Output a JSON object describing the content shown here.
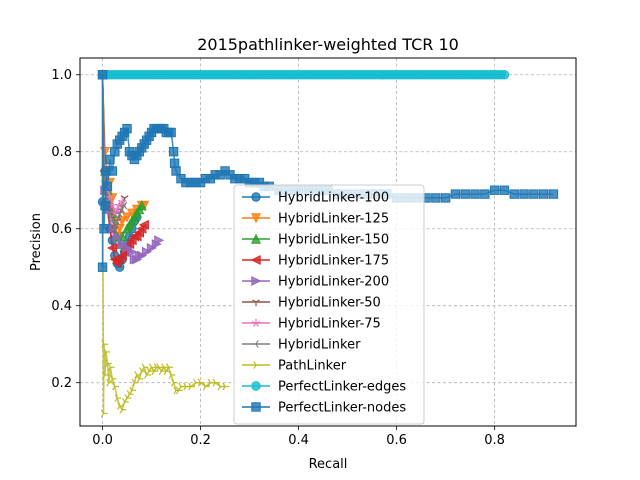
{
  "chart_data": {
    "type": "line",
    "title": "2015pathlinker-weighted TCR 10",
    "xlabel": "Recall",
    "ylabel": "Precision",
    "xlim": [
      -0.046,
      0.966
    ],
    "ylim": [
      0.0875,
      1.0435
    ],
    "xticks": [
      "0.0",
      "0.2",
      "0.4",
      "0.6",
      "0.8"
    ],
    "xtick_values": [
      0.0,
      0.2,
      0.4,
      0.6,
      0.8
    ],
    "yticks": [
      "0.2",
      "0.4",
      "0.6",
      "0.8",
      "1.0"
    ],
    "ytick_values": [
      0.2,
      0.4,
      0.6,
      0.8,
      1.0
    ],
    "grid": true,
    "legend_position": "lower-center-right",
    "series": [
      {
        "name": "HybridLinker-100",
        "color": "#1f77b4",
        "marker": "circle",
        "x": [
          0.0,
          0.0,
          0.005,
          0.01,
          0.015,
          0.02,
          0.025,
          0.03,
          0.035,
          0.04,
          0.045,
          0.05,
          0.055,
          0.06,
          0.065,
          0.07
        ],
        "y": [
          1.0,
          0.67,
          0.75,
          0.67,
          0.6,
          0.57,
          0.53,
          0.51,
          0.5,
          0.52,
          0.54,
          0.56,
          0.58,
          0.6,
          0.62,
          0.63
        ]
      },
      {
        "name": "HybridLinker-125",
        "color": "#ff7f0e",
        "marker": "triangle-down",
        "x": [
          0.0,
          0.005,
          0.01,
          0.015,
          0.02,
          0.025,
          0.03,
          0.035,
          0.04,
          0.05,
          0.06,
          0.07,
          0.08,
          0.085
        ],
        "y": [
          1.0,
          0.8,
          0.75,
          0.72,
          0.68,
          0.62,
          0.58,
          0.6,
          0.62,
          0.63,
          0.64,
          0.65,
          0.66,
          0.66
        ]
      },
      {
        "name": "HybridLinker-150",
        "color": "#2ca02c",
        "marker": "triangle-up",
        "x": [
          0.0,
          0.005,
          0.01,
          0.015,
          0.02,
          0.03,
          0.035,
          0.04,
          0.05,
          0.055,
          0.06,
          0.065,
          0.07,
          0.075,
          0.08
        ],
        "y": [
          1.0,
          0.75,
          0.7,
          0.66,
          0.64,
          0.58,
          0.56,
          0.58,
          0.6,
          0.61,
          0.62,
          0.63,
          0.64,
          0.65,
          0.66
        ]
      },
      {
        "name": "HybridLinker-175",
        "color": "#d62728",
        "marker": "triangle-left",
        "x": [
          0.0,
          0.005,
          0.01,
          0.015,
          0.02,
          0.025,
          0.03,
          0.035,
          0.04,
          0.045,
          0.05,
          0.055,
          0.06,
          0.065,
          0.07,
          0.075,
          0.08,
          0.085
        ],
        "y": [
          1.0,
          0.75,
          0.65,
          0.6,
          0.55,
          0.52,
          0.51,
          0.52,
          0.53,
          0.54,
          0.55,
          0.56,
          0.57,
          0.58,
          0.58,
          0.59,
          0.6,
          0.61
        ]
      },
      {
        "name": "HybridLinker-200",
        "color": "#9467bd",
        "marker": "triangle-right",
        "x": [
          0.0,
          0.005,
          0.01,
          0.02,
          0.03,
          0.04,
          0.05,
          0.06,
          0.065,
          0.07,
          0.075,
          0.08,
          0.09,
          0.1,
          0.11,
          0.115
        ],
        "y": [
          1.0,
          0.7,
          0.65,
          0.6,
          0.58,
          0.56,
          0.55,
          0.54,
          0.52,
          0.52,
          0.53,
          0.53,
          0.54,
          0.55,
          0.56,
          0.57
        ]
      },
      {
        "name": "HybridLinker-50",
        "color": "#8c564b",
        "marker": "tri-down",
        "x": [
          0.0,
          0.005,
          0.01,
          0.015,
          0.02,
          0.025,
          0.03,
          0.035,
          0.04,
          0.045
        ],
        "y": [
          1.0,
          0.7,
          0.67,
          0.65,
          0.64,
          0.6,
          0.62,
          0.64,
          0.66,
          0.68
        ]
      },
      {
        "name": "HybridLinker-75",
        "color": "#e377c2",
        "marker": "star",
        "x": [
          0.0,
          0.005,
          0.01,
          0.015,
          0.02,
          0.025,
          0.03,
          0.035,
          0.04
        ],
        "y": [
          1.0,
          0.72,
          0.7,
          0.68,
          0.66,
          0.64,
          0.65,
          0.66,
          0.67
        ]
      },
      {
        "name": "HybridLinker",
        "color": "#7f7f7f",
        "marker": "tri-left",
        "x": [
          0.0,
          0.005,
          0.01,
          0.015,
          0.02,
          0.025,
          0.03,
          0.035,
          0.04,
          0.045
        ],
        "y": [
          1.0,
          0.7,
          0.66,
          0.64,
          0.62,
          0.6,
          0.62,
          0.64,
          0.65,
          0.66
        ]
      },
      {
        "name": "PathLinker",
        "color": "#bcbd22",
        "marker": "tri-right",
        "x": [
          0.0,
          0.001,
          0.002,
          0.003,
          0.005,
          0.007,
          0.01,
          0.013,
          0.016,
          0.02,
          0.025,
          0.03,
          0.035,
          0.04,
          0.045,
          0.05,
          0.055,
          0.06,
          0.065,
          0.07,
          0.075,
          0.08,
          0.085,
          0.09,
          0.095,
          0.1,
          0.105,
          0.11,
          0.115,
          0.12,
          0.125,
          0.13,
          0.135,
          0.14,
          0.145,
          0.15,
          0.155,
          0.16,
          0.17,
          0.18,
          0.19,
          0.2,
          0.21,
          0.22,
          0.23,
          0.24,
          0.25
        ],
        "y": [
          1.0,
          0.5,
          0.12,
          0.3,
          0.22,
          0.28,
          0.25,
          0.2,
          0.24,
          0.21,
          0.19,
          0.16,
          0.14,
          0.13,
          0.15,
          0.16,
          0.17,
          0.18,
          0.2,
          0.22,
          0.21,
          0.23,
          0.24,
          0.22,
          0.23,
          0.24,
          0.23,
          0.24,
          0.24,
          0.23,
          0.24,
          0.23,
          0.24,
          0.22,
          0.2,
          0.18,
          0.18,
          0.19,
          0.19,
          0.19,
          0.2,
          0.2,
          0.19,
          0.2,
          0.2,
          0.19,
          0.19
        ]
      },
      {
        "name": "PerfectLinker-edges",
        "color": "#17becf",
        "marker": "circle",
        "x": [
          0.0,
          0.82
        ],
        "y": [
          1.0,
          1.0
        ]
      },
      {
        "name": "PerfectLinker-nodes",
        "color": "#1f77b4",
        "marker": "square",
        "x": [
          0.0,
          0.0,
          0.003,
          0.005,
          0.008,
          0.01,
          0.015,
          0.02,
          0.025,
          0.03,
          0.035,
          0.04,
          0.045,
          0.05,
          0.055,
          0.06,
          0.065,
          0.07,
          0.075,
          0.08,
          0.085,
          0.09,
          0.095,
          0.1,
          0.105,
          0.11,
          0.115,
          0.12,
          0.125,
          0.13,
          0.135,
          0.14,
          0.145,
          0.147,
          0.15,
          0.16,
          0.17,
          0.18,
          0.19,
          0.2,
          0.21,
          0.22,
          0.23,
          0.24,
          0.25,
          0.26,
          0.27,
          0.28,
          0.29,
          0.3,
          0.31,
          0.32,
          0.33,
          0.34,
          0.36,
          0.38,
          0.4,
          0.42,
          0.44,
          0.46,
          0.48,
          0.5,
          0.52,
          0.54,
          0.56,
          0.58,
          0.6,
          0.62,
          0.64,
          0.66,
          0.68,
          0.7,
          0.72,
          0.74,
          0.76,
          0.78,
          0.8,
          0.82,
          0.84,
          0.86,
          0.88,
          0.9,
          0.92
        ],
        "y": [
          0.5,
          1.0,
          0.6,
          0.66,
          0.75,
          0.71,
          0.78,
          0.75,
          0.8,
          0.82,
          0.83,
          0.84,
          0.85,
          0.86,
          0.8,
          0.79,
          0.78,
          0.79,
          0.8,
          0.81,
          0.82,
          0.83,
          0.84,
          0.85,
          0.86,
          0.86,
          0.86,
          0.86,
          0.86,
          0.85,
          0.85,
          0.85,
          0.8,
          0.77,
          0.75,
          0.73,
          0.72,
          0.72,
          0.72,
          0.72,
          0.73,
          0.73,
          0.74,
          0.74,
          0.75,
          0.74,
          0.73,
          0.73,
          0.73,
          0.72,
          0.72,
          0.72,
          0.71,
          0.71,
          0.7,
          0.7,
          0.7,
          0.7,
          0.7,
          0.7,
          0.69,
          0.69,
          0.69,
          0.69,
          0.69,
          0.69,
          0.68,
          0.68,
          0.68,
          0.68,
          0.68,
          0.68,
          0.69,
          0.69,
          0.69,
          0.69,
          0.7,
          0.7,
          0.69,
          0.69,
          0.69,
          0.69,
          0.69
        ]
      }
    ]
  }
}
